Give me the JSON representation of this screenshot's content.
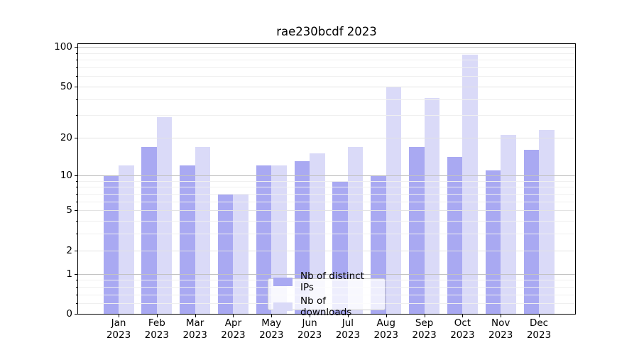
{
  "title": "rae230bcdf 2023",
  "chart_data": {
    "type": "bar",
    "title": "rae230bcdf 2023",
    "categories": [
      "Jan",
      "Feb",
      "Mar",
      "Apr",
      "May",
      "Jun",
      "Jul",
      "Aug",
      "Sep",
      "Oct",
      "Nov",
      "Dec"
    ],
    "x_tick_year": "2023",
    "series": [
      {
        "name": "Nb of distinct IPs",
        "color": "#a9a9f2",
        "values": [
          10,
          17,
          12,
          7,
          12,
          13,
          9,
          10,
          17,
          14,
          11,
          16
        ]
      },
      {
        "name": "Nb of downloads",
        "color": "#dadaf8",
        "values": [
          12,
          29,
          17,
          7,
          12,
          15,
          17,
          49,
          41,
          87,
          21,
          23
        ]
      }
    ],
    "yscale": "log1p",
    "ylim": [
      0,
      107
    ],
    "yticks": [
      0,
      1,
      2,
      5,
      10,
      20,
      50,
      100
    ],
    "ytick_labels": [
      "0",
      "1",
      "2",
      "5",
      "10",
      "20",
      "50",
      "100"
    ],
    "yticks_minor": [
      0.2,
      0.4,
      0.6,
      0.8,
      3,
      4,
      6,
      7,
      8,
      9,
      30,
      40,
      60,
      70,
      80,
      90
    ],
    "grid": true,
    "legend_position": "lower center",
    "xlabel": "",
    "ylabel": ""
  },
  "colors": {
    "bar_ips": "#a9a9f2",
    "bar_downloads": "#dadaf8",
    "grid_decade": "#c2c2c2",
    "grid_labeled": "#e3e3e3",
    "grid_minor": "#efefef",
    "spine": "#000000",
    "background": "#ffffff",
    "legend_border": "#cccccc"
  }
}
